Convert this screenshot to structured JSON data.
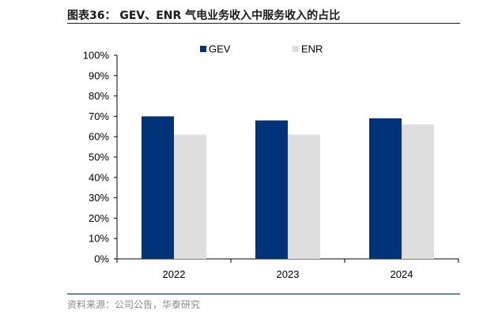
{
  "figure": {
    "title": "图表36：  GEV、ENR 气电业务收入中服务收入的占比",
    "source": "资料来源：公司公告，华泰研究"
  },
  "chart_data": {
    "type": "bar",
    "categories": [
      "2022",
      "2023",
      "2024"
    ],
    "series": [
      {
        "name": "GEV",
        "values": [
          0.7,
          0.68,
          0.69
        ],
        "color": "#00337a"
      },
      {
        "name": "ENR",
        "values": [
          0.61,
          0.61,
          0.66
        ],
        "color": "#dedede"
      }
    ],
    "ylim": [
      0,
      1
    ],
    "yticks": [
      "0%",
      "10%",
      "20%",
      "30%",
      "40%",
      "50%",
      "60%",
      "70%",
      "80%",
      "90%",
      "100%"
    ],
    "legend_position": "top",
    "grid": false
  }
}
